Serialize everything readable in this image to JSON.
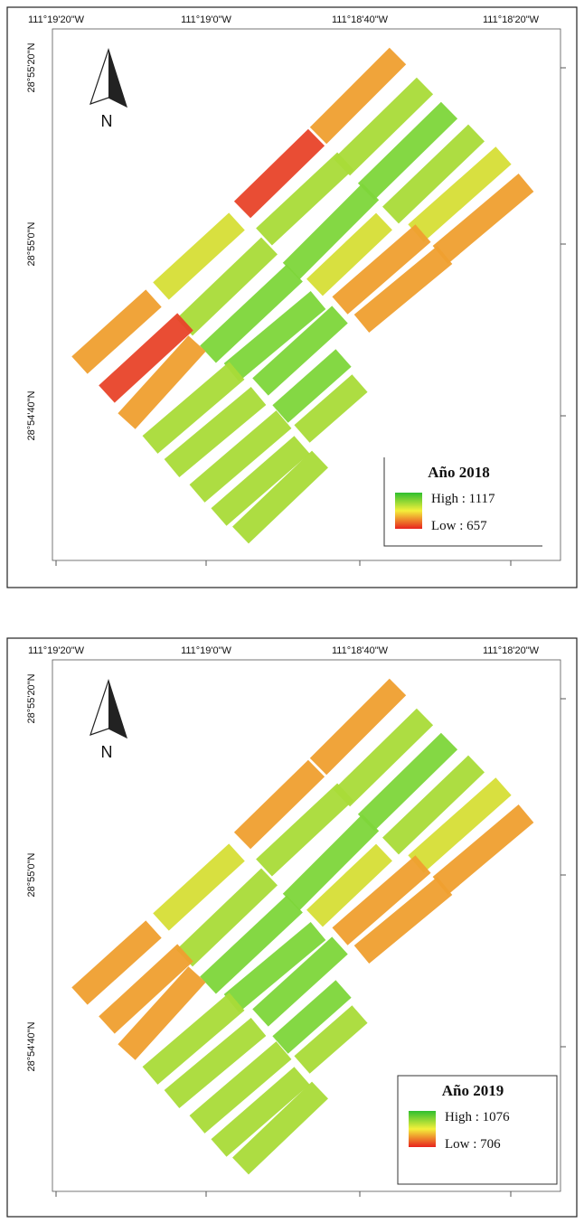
{
  "maps": [
    {
      "top_labels": [
        "111°19'20\"W",
        "111°19'0\"W",
        "111°18'40\"W",
        "111°18'20\"W"
      ],
      "left_labels": [
        "28°55'20\"N",
        "28°55'0\"N",
        "28°54'40\"N"
      ],
      "north": "N",
      "legend": {
        "title": "Año 2018",
        "high": "High : 1117",
        "low": "Low : 657"
      }
    },
    {
      "top_labels": [
        "111°19'20\"W",
        "111°19'0\"W",
        "111°18'40\"W",
        "111°18'20\"W"
      ],
      "left_labels": [
        "28°55'20\"N",
        "28°55'0\"N",
        "28°54'40\"N"
      ],
      "north": "N",
      "legend": {
        "title": "Año 2019",
        "high": "High : 1076",
        "low": "Low : 706"
      }
    }
  ]
}
